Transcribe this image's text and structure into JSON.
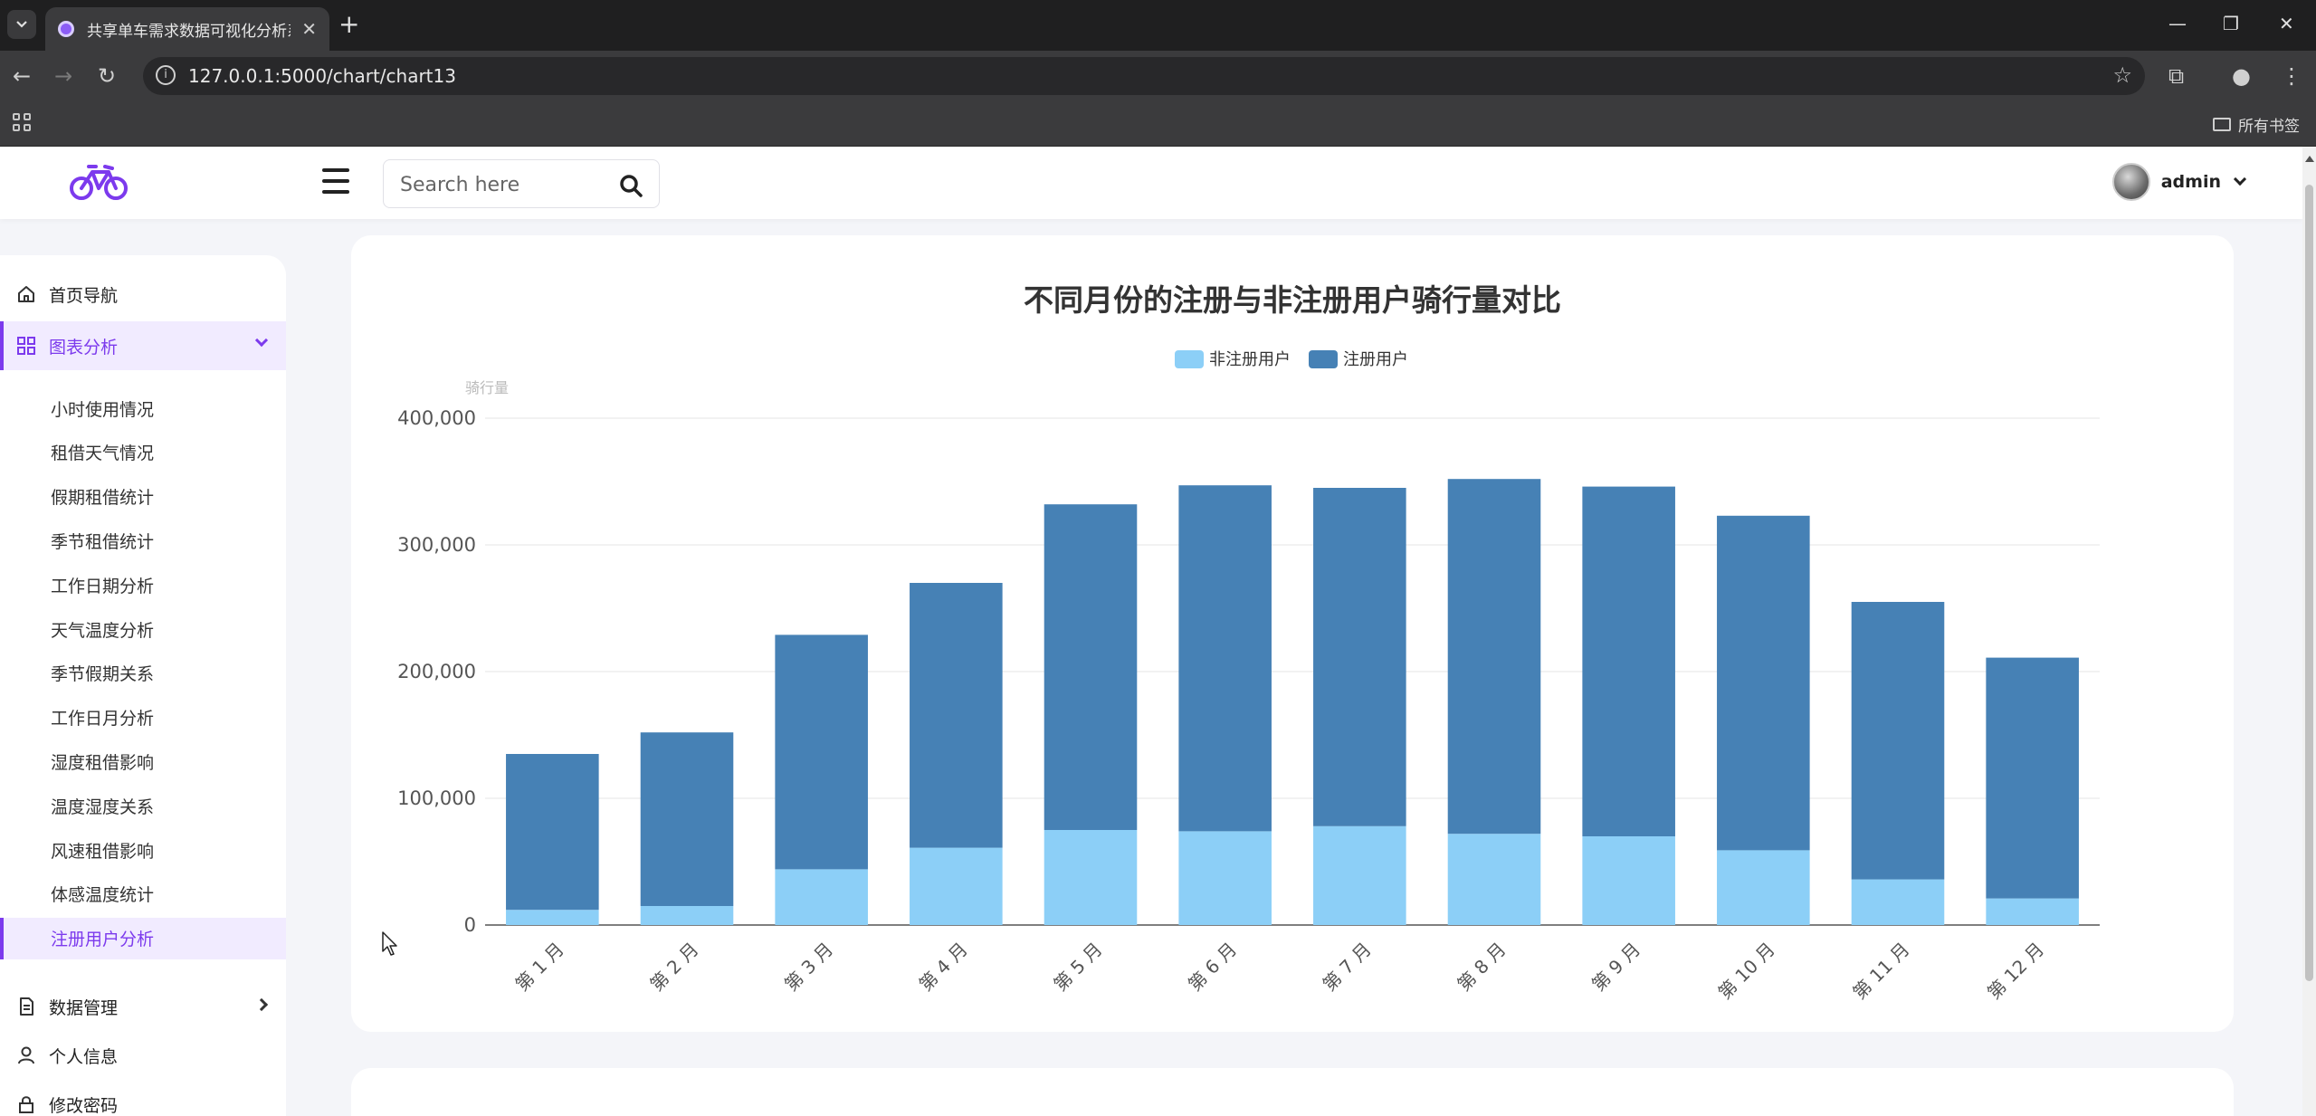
{
  "browser": {
    "tab_title": "共享单车需求数据可视化分析系统",
    "url": "127.0.0.1:5000/chart/chart13",
    "all_bookmarks": "所有书签"
  },
  "header": {
    "search_placeholder": "Search here",
    "user_name": "admin"
  },
  "sidebar": {
    "home": "首页导航",
    "charts": "图表分析",
    "sub_items": [
      "小时使用情况",
      "租借天气情况",
      "假期租借统计",
      "季节租借统计",
      "工作日期分析",
      "天气温度分析",
      "季节假期关系",
      "工作日月分析",
      "湿度租借影响",
      "温度湿度关系",
      "风速租借影响",
      "体感温度统计",
      "注册用户分析"
    ],
    "active_sub": 12,
    "data_mgmt": "数据管理",
    "profile": "个人信息",
    "change_pwd": "修改密码"
  },
  "chart_data": {
    "type": "bar",
    "stacked": true,
    "title": "不同月份的注册与非注册用户骑行量对比",
    "ylabel": "骑行量",
    "xlabel": "",
    "ylim": [
      0,
      400000
    ],
    "yticks": [
      0,
      100000,
      200000,
      300000,
      400000
    ],
    "ytick_labels": [
      "0",
      "100,000",
      "200,000",
      "300,000",
      "400,000"
    ],
    "legend_position": "top-center",
    "categories": [
      "第 1 月",
      "第 2 月",
      "第 3 月",
      "第 4 月",
      "第 5 月",
      "第 6 月",
      "第 7 月",
      "第 8 月",
      "第 9 月",
      "第 10 月",
      "第 11 月",
      "第 12 月"
    ],
    "series": [
      {
        "name": "非注册用户",
        "color": "#8ccff7",
        "values": [
          12000,
          15000,
          44000,
          61000,
          75000,
          74000,
          78000,
          72000,
          70000,
          59000,
          36000,
          21000
        ]
      },
      {
        "name": "注册用户",
        "color": "#4681b5",
        "values": [
          123000,
          137000,
          185000,
          209000,
          257000,
          273000,
          267000,
          280000,
          276000,
          264000,
          219000,
          190000
        ]
      }
    ]
  }
}
